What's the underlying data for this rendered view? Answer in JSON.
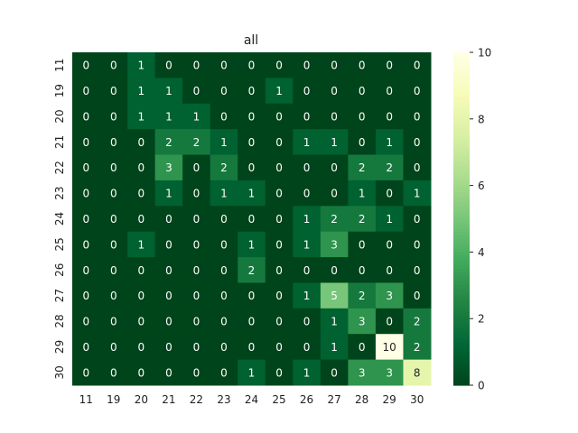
{
  "chart_data": {
    "type": "heatmap",
    "title": "all",
    "xlabel": "",
    "ylabel": "",
    "x_categories": [
      "11",
      "19",
      "20",
      "21",
      "22",
      "23",
      "24",
      "25",
      "26",
      "27",
      "28",
      "29",
      "30"
    ],
    "y_categories": [
      "11",
      "19",
      "20",
      "21",
      "22",
      "23",
      "24",
      "25",
      "26",
      "27",
      "28",
      "29",
      "30"
    ],
    "values": [
      [
        0,
        0,
        1,
        0,
        0,
        0,
        0,
        0,
        0,
        0,
        0,
        0,
        0
      ],
      [
        0,
        0,
        1,
        1,
        0,
        0,
        0,
        1,
        0,
        0,
        0,
        0,
        0
      ],
      [
        0,
        0,
        1,
        1,
        1,
        0,
        0,
        0,
        0,
        0,
        0,
        0,
        0
      ],
      [
        0,
        0,
        0,
        2,
        2,
        1,
        0,
        0,
        1,
        1,
        0,
        1,
        0
      ],
      [
        0,
        0,
        0,
        3,
        0,
        2,
        0,
        0,
        0,
        0,
        2,
        2,
        0
      ],
      [
        0,
        0,
        0,
        1,
        0,
        1,
        1,
        0,
        0,
        0,
        1,
        0,
        1
      ],
      [
        0,
        0,
        0,
        0,
        0,
        0,
        0,
        0,
        1,
        2,
        2,
        1,
        0
      ],
      [
        0,
        0,
        1,
        0,
        0,
        0,
        1,
        0,
        1,
        3,
        0,
        0,
        0
      ],
      [
        0,
        0,
        0,
        0,
        0,
        0,
        2,
        0,
        0,
        0,
        0,
        0,
        0
      ],
      [
        0,
        0,
        0,
        0,
        0,
        0,
        0,
        0,
        1,
        5,
        2,
        3,
        0
      ],
      [
        0,
        0,
        0,
        0,
        0,
        0,
        0,
        0,
        0,
        1,
        3,
        0,
        2
      ],
      [
        0,
        0,
        0,
        0,
        0,
        0,
        0,
        0,
        0,
        1,
        0,
        10,
        2
      ],
      [
        0,
        0,
        0,
        0,
        0,
        0,
        1,
        0,
        1,
        0,
        3,
        3,
        8
      ]
    ],
    "colorbar": {
      "min": 0,
      "max": 10,
      "ticks": [
        0,
        2,
        4,
        6,
        8,
        10
      ]
    },
    "colormap": "YlGn_r",
    "annotations": true,
    "colors": {
      "low": "#00441b",
      "high": "#ffffe5"
    }
  }
}
